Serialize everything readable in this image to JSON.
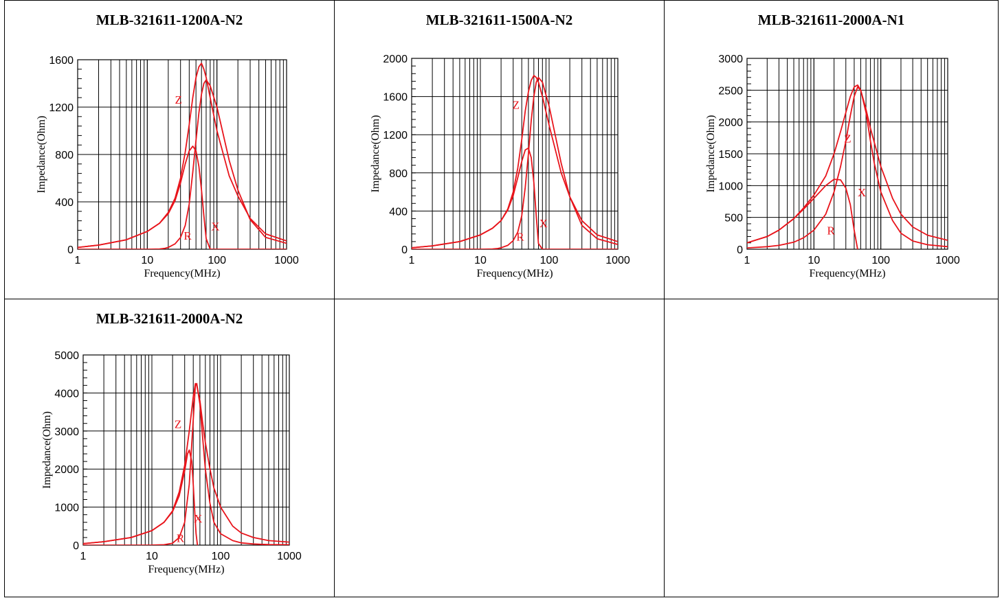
{
  "colors": {
    "curve": "#e8141b",
    "grid": "#000000"
  },
  "chart_data": [
    {
      "type": "line",
      "title": "MLB-321611-1200A-N2",
      "xlabel": "Frequency(MHz)",
      "ylabel": "Impedance(Ohm)",
      "xscale": "log",
      "xlim": [
        1,
        1000
      ],
      "ylim": [
        0,
        1600
      ],
      "xticks": [
        "1",
        "10",
        "100",
        "1000"
      ],
      "yticks": [
        "0",
        "400",
        "800",
        "1200",
        "1600"
      ],
      "ytick_values": [
        0,
        400,
        800,
        1200,
        1600
      ],
      "grid": true,
      "series": [
        {
          "name": "Z",
          "x": [
            1,
            2,
            5,
            10,
            15,
            20,
            25,
            30,
            35,
            40,
            45,
            50,
            55,
            60,
            65,
            70,
            80,
            100,
            150,
            200,
            300,
            500,
            1000
          ],
          "y": [
            15,
            35,
            80,
            150,
            220,
            310,
            430,
            600,
            820,
            1050,
            1280,
            1450,
            1540,
            1570,
            1520,
            1450,
            1280,
            1000,
            620,
            450,
            260,
            130,
            70
          ]
        },
        {
          "name": "X",
          "x": [
            1,
            2,
            5,
            10,
            15,
            20,
            25,
            30,
            35,
            40,
            45,
            50,
            55,
            60,
            65,
            70,
            80,
            100,
            150,
            200,
            300,
            500,
            1000
          ],
          "y": [
            15,
            35,
            80,
            150,
            220,
            300,
            410,
            560,
            720,
            830,
            870,
            830,
            700,
            500,
            280,
            90,
            0,
            0,
            0,
            0,
            0,
            0,
            0
          ]
        },
        {
          "name": "R",
          "x": [
            1,
            5,
            10,
            15,
            18,
            20,
            25,
            30,
            35,
            40,
            45,
            50,
            55,
            60,
            65,
            70,
            80,
            100,
            150,
            200,
            300,
            500,
            1000
          ],
          "y": [
            0,
            0,
            0,
            2,
            8,
            15,
            45,
            100,
            200,
            380,
            650,
            920,
            1150,
            1310,
            1400,
            1430,
            1380,
            1200,
            750,
            500,
            250,
            100,
            50
          ]
        }
      ],
      "series_labels": [
        {
          "name": "Z",
          "x": 28,
          "y": 1230
        },
        {
          "name": "R",
          "x": 38,
          "y": 80
        },
        {
          "name": "X",
          "x": 95,
          "y": 160
        }
      ]
    },
    {
      "type": "line",
      "title": "MLB-321611-1500A-N2",
      "xlabel": "Frequency(MHz)",
      "ylabel": "Impedance(Ohm)",
      "xscale": "log",
      "xlim": [
        1,
        1000
      ],
      "ylim": [
        0,
        2000
      ],
      "xticks": [
        "1",
        "10",
        "100",
        "1000"
      ],
      "yticks": [
        "0",
        "400",
        "800",
        "1200",
        "1600",
        "2000"
      ],
      "ytick_values": [
        0,
        400,
        800,
        1200,
        1600,
        2000
      ],
      "grid": true,
      "series": [
        {
          "name": "Z",
          "x": [
            1,
            2,
            5,
            10,
            15,
            20,
            25,
            30,
            35,
            40,
            45,
            50,
            55,
            60,
            65,
            70,
            80,
            100,
            150,
            200,
            300,
            500,
            1000
          ],
          "y": [
            15,
            35,
            80,
            150,
            220,
            300,
            420,
            600,
            850,
            1150,
            1450,
            1650,
            1770,
            1820,
            1800,
            1750,
            1600,
            1300,
            800,
            550,
            300,
            150,
            80
          ]
        },
        {
          "name": "X",
          "x": [
            1,
            2,
            5,
            10,
            15,
            20,
            25,
            30,
            35,
            40,
            45,
            50,
            55,
            60,
            65,
            70,
            80,
            100,
            150,
            200,
            300,
            500,
            1000
          ],
          "y": [
            15,
            35,
            80,
            150,
            220,
            300,
            410,
            560,
            750,
            920,
            1040,
            1060,
            960,
            700,
            350,
            60,
            0,
            0,
            0,
            0,
            0,
            0,
            0
          ]
        },
        {
          "name": "R",
          "x": [
            1,
            5,
            10,
            15,
            18,
            20,
            25,
            30,
            35,
            40,
            45,
            50,
            55,
            60,
            65,
            70,
            80,
            100,
            150,
            200,
            300,
            500,
            1000
          ],
          "y": [
            0,
            0,
            0,
            2,
            8,
            15,
            40,
            90,
            180,
            350,
            650,
            1000,
            1350,
            1600,
            1750,
            1800,
            1750,
            1500,
            900,
            550,
            250,
            110,
            50
          ]
        }
      ],
      "series_labels": [
        {
          "name": "Z",
          "x": 33,
          "y": 1470
        },
        {
          "name": "R",
          "x": 38,
          "y": 90
        },
        {
          "name": "X",
          "x": 83,
          "y": 230
        }
      ]
    },
    {
      "type": "line",
      "title": "MLB-321611-2000A-N1",
      "xlabel": "Frequency(MHz)",
      "ylabel": "Impedance(Ohm)",
      "xscale": "log",
      "xlim": [
        1,
        1000
      ],
      "ylim": [
        0,
        3000
      ],
      "xticks": [
        "1",
        "10",
        "100",
        "1000"
      ],
      "yticks": [
        "0",
        "500",
        "1000",
        "1500",
        "2000",
        "2500",
        "3000"
      ],
      "ytick_values": [
        0,
        500,
        1000,
        1500,
        2000,
        2500,
        3000
      ],
      "grid": true,
      "series": [
        {
          "name": "Z",
          "x": [
            1,
            2,
            3,
            5,
            7,
            10,
            15,
            20,
            25,
            30,
            35,
            40,
            45,
            50,
            60,
            70,
            100,
            150,
            200,
            300,
            500,
            1000
          ],
          "y": [
            100,
            200,
            300,
            480,
            650,
            850,
            1150,
            1500,
            1850,
            2150,
            2400,
            2550,
            2580,
            2500,
            2200,
            1900,
            1300,
            800,
            550,
            350,
            220,
            140
          ]
        },
        {
          "name": "X",
          "x": [
            1,
            2,
            3,
            5,
            7,
            10,
            15,
            20,
            25,
            30,
            35,
            40,
            45
          ],
          "y": [
            100,
            200,
            300,
            480,
            630,
            800,
            1000,
            1100,
            1090,
            960,
            700,
            300,
            0
          ]
        },
        {
          "name": "R",
          "x": [
            1,
            2,
            3,
            5,
            7,
            10,
            15,
            20,
            25,
            30,
            35,
            40,
            45,
            50,
            60,
            70,
            80,
            100,
            150,
            200,
            300,
            500,
            1000
          ],
          "y": [
            20,
            40,
            60,
            110,
            180,
            300,
            550,
            900,
            1300,
            1700,
            2100,
            2400,
            2550,
            2500,
            2150,
            1700,
            1350,
            900,
            450,
            250,
            130,
            70,
            40
          ]
        }
      ],
      "series_labels": [
        {
          "name": "Z",
          "x": 32,
          "y": 1680
        },
        {
          "name": "R",
          "x": 18,
          "y": 230
        },
        {
          "name": "X",
          "x": 52,
          "y": 830
        }
      ]
    },
    {
      "type": "line",
      "title": "MLB-321611-2000A-N2",
      "xlabel": "Frequency(MHz)",
      "ylabel": "Impedance(Ohm)",
      "xscale": "log",
      "xlim": [
        1,
        1000
      ],
      "ylim": [
        0,
        5000
      ],
      "xticks": [
        "1",
        "10",
        "100",
        "1000"
      ],
      "yticks": [
        "0",
        "1000",
        "2000",
        "3000",
        "4000",
        "5000"
      ],
      "ytick_values": [
        0,
        1000,
        2000,
        3000,
        4000,
        5000
      ],
      "grid": true,
      "series": [
        {
          "name": "Z",
          "x": [
            1,
            2,
            5,
            10,
            15,
            20,
            25,
            30,
            35,
            40,
            43,
            45,
            50,
            55,
            60,
            70,
            80,
            100,
            150,
            200,
            300,
            500,
            1000
          ],
          "y": [
            40,
            90,
            200,
            380,
            600,
            900,
            1400,
            2100,
            3000,
            3900,
            4250,
            4200,
            3800,
            3200,
            2700,
            2000,
            1500,
            1000,
            500,
            320,
            200,
            120,
            80
          ]
        },
        {
          "name": "X",
          "x": [
            1,
            2,
            5,
            10,
            15,
            20,
            25,
            30,
            33,
            35,
            38,
            40,
            42,
            44,
            46
          ],
          "y": [
            40,
            90,
            200,
            380,
            600,
            880,
            1300,
            1950,
            2400,
            2500,
            2200,
            1600,
            900,
            300,
            0
          ]
        },
        {
          "name": "R",
          "x": [
            1,
            5,
            10,
            15,
            20,
            25,
            30,
            35,
            40,
            43,
            45,
            50,
            55,
            60,
            70,
            80,
            100,
            150,
            200,
            300,
            500,
            1000
          ],
          "y": [
            0,
            0,
            2,
            10,
            50,
            200,
            600,
            1600,
            3300,
            4200,
            4250,
            3700,
            2800,
            2000,
            1100,
            600,
            300,
            120,
            60,
            30,
            15,
            10
          ]
        }
      ],
      "series_labels": [
        {
          "name": "Z",
          "x": 24,
          "y": 3080
        },
        {
          "name": "R",
          "x": 26,
          "y": 80
        },
        {
          "name": "X",
          "x": 47,
          "y": 600
        }
      ]
    }
  ]
}
